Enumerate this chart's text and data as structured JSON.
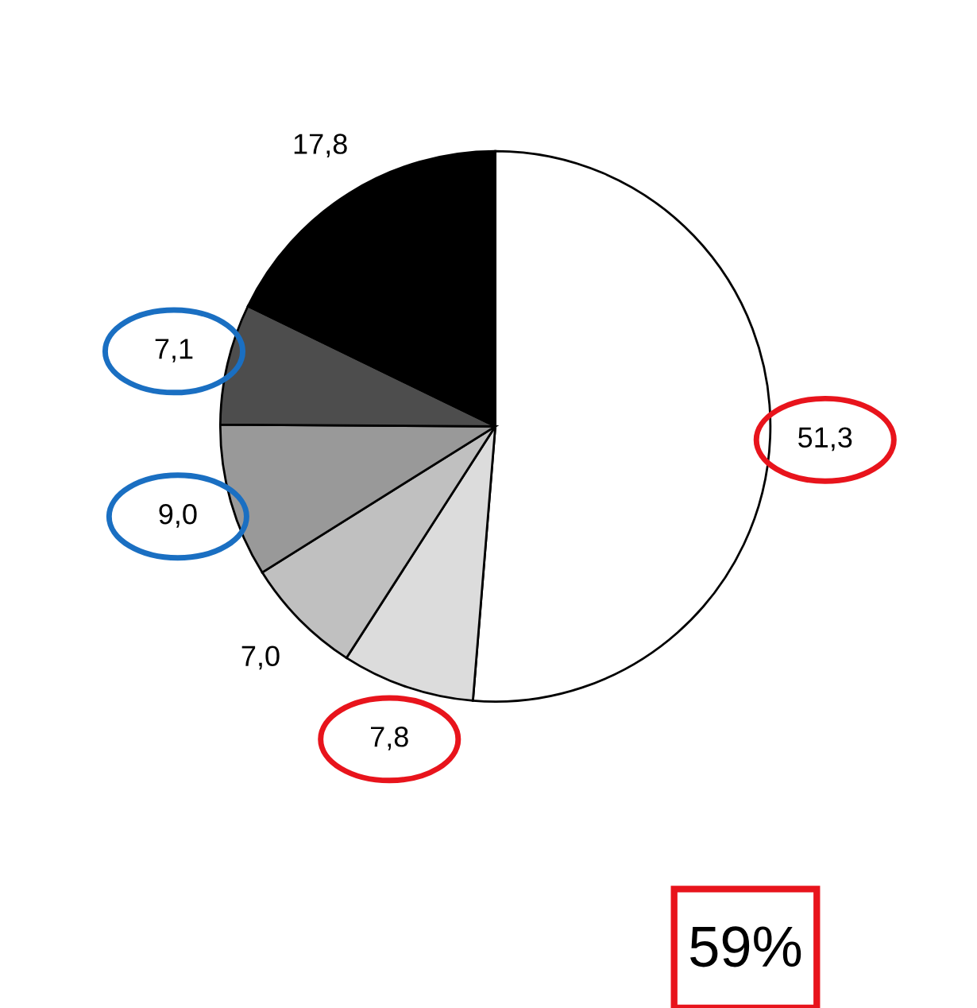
{
  "chart_data": {
    "type": "pie",
    "categories": [
      null,
      null,
      null,
      null,
      null,
      null
    ],
    "values": [
      51.3,
      7.8,
      7.0,
      9.0,
      7.1,
      17.8
    ],
    "value_labels": [
      "51,3",
      "7,8",
      "7,0",
      "9,0",
      "7,1",
      "17,8"
    ],
    "colors": [
      "#ffffff",
      "#dcdcdc",
      "#c0c0c0",
      "#999999",
      "#4d4d4d",
      "#000000"
    ],
    "annotations": [
      "59%"
    ]
  }
}
